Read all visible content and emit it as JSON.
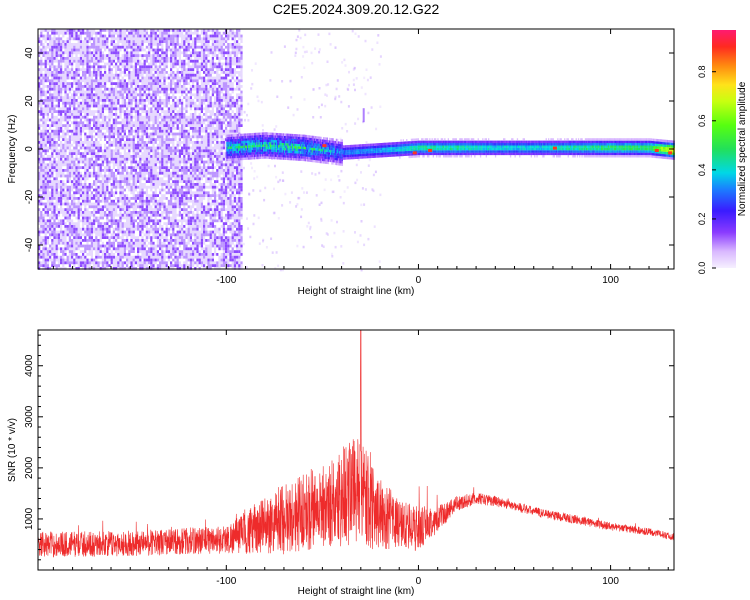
{
  "figure": {
    "title": "C2E5.2024.309.20.12.G22"
  },
  "colors": {
    "snr_line": "#ee2b2b",
    "noise": "#7a2bff",
    "axis": "#000000",
    "tick_gray": "#888888"
  },
  "colorbar": {
    "label": "Normalized spectral amplitude",
    "ticks": [
      "0.0",
      "0.2",
      "0.4",
      "0.6",
      "0.8"
    ],
    "tick_values": [
      0.0,
      0.2,
      0.4,
      0.6,
      0.8
    ],
    "range": [
      0,
      0.97
    ]
  },
  "chart_data": [
    {
      "type": "heatmap",
      "xlabel": "Height of straight line (km)",
      "ylabel": "Frequency (Hz)",
      "xlim": [
        -198,
        133
      ],
      "ylim": [
        -50,
        50
      ],
      "xticks": [
        -100,
        0,
        100
      ],
      "xtick_labels": [
        "-100",
        "0",
        "100"
      ],
      "yticks": [
        -40,
        -20,
        0,
        20,
        40
      ],
      "ytick_labels": [
        "-40",
        "-20",
        "0",
        "20",
        "40"
      ],
      "noise_region_x": [
        -198,
        -92
      ],
      "signal_band": {
        "x": [
          -100,
          -80,
          -60,
          -40,
          -20,
          0,
          20,
          40,
          60,
          80,
          100,
          120,
          133
        ],
        "center_hz": [
          0,
          1,
          0,
          -2,
          -1,
          0,
          0,
          0,
          0,
          0,
          0,
          0,
          -1
        ],
        "amplitude": [
          0.45,
          0.5,
          0.5,
          0.35,
          0.4,
          0.5,
          0.5,
          0.45,
          0.45,
          0.5,
          0.55,
          0.55,
          0.9
        ]
      }
    },
    {
      "type": "line",
      "xlabel": "Height of straight line (km)",
      "ylabel": "SNR (10 * v/v)",
      "xlim": [
        -198,
        133
      ],
      "ylim": [
        0,
        4700
      ],
      "xticks": [
        -100,
        0,
        100
      ],
      "xtick_labels": [
        "-100",
        "0",
        "100"
      ],
      "yticks": [
        1000,
        2000,
        3000,
        4000
      ],
      "ytick_labels": [
        "1000",
        "2000",
        "3000",
        "4000"
      ],
      "envelope": {
        "x": [
          -198,
          -150,
          -100,
          -85,
          -70,
          -55,
          -45,
          -35,
          -30,
          -25,
          -20,
          -10,
          0,
          10,
          20,
          30,
          40,
          60,
          80,
          100,
          120,
          133
        ],
        "center": [
          500,
          520,
          600,
          800,
          1000,
          1200,
          1300,
          1600,
          1500,
          1300,
          1100,
          900,
          800,
          1000,
          1300,
          1400,
          1350,
          1150,
          1000,
          850,
          750,
          650
        ],
        "spread": [
          250,
          250,
          280,
          500,
          700,
          800,
          900,
          1100,
          1000,
          900,
          700,
          500,
          450,
          250,
          150,
          120,
          100,
          90,
          90,
          80,
          70,
          70
        ]
      },
      "peak": {
        "x": -30,
        "y": 4700
      }
    }
  ]
}
